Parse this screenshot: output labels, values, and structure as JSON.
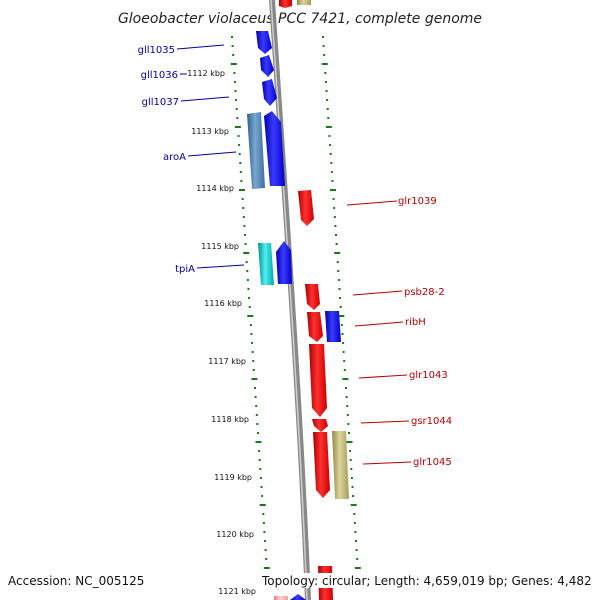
{
  "title": "Gloeobacter violaceus PCC 7421, complete genome",
  "footer": {
    "accession": "Accession: NC_005125",
    "topology": "Topology: circular; Length: 4,659,019 bp; Genes: 4,482"
  },
  "colors": {
    "forward_gene": "#0000ee",
    "reverse_gene": "#ee0000",
    "arom_gene": "#4682b4",
    "tpi_gene": "#00c0c0",
    "khaki_gene": "#bdb76b",
    "tick_green": "#1a7a1a",
    "backbone": "#888888",
    "label_blue": "#0000aa",
    "label_red": "#bb0000"
  },
  "kbp_ticks": [
    "1112 kbp",
    "1113 kbp",
    "1114 kbp",
    "1115 kbp",
    "1116 kbp",
    "1117 kbp",
    "1118 kbp",
    "1119 kbp",
    "1120 kbp",
    "1121 kbp"
  ],
  "left_labels": [
    "gll1035",
    "gll1036",
    "gll1037",
    "aroA",
    "tpiA"
  ],
  "right_labels": [
    "glr1039",
    "psb28-2",
    "ribH",
    "glr1043",
    "gsr1044",
    "glr1045"
  ]
}
